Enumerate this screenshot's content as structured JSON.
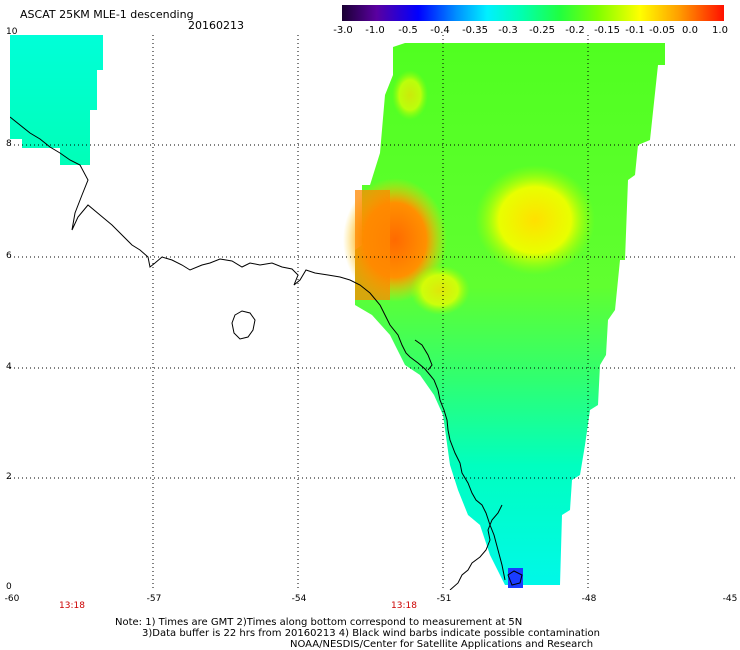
{
  "header": {
    "title": "ASCAT 25KM MLE-1 descending",
    "date": "20160213"
  },
  "colorbar": {
    "labels": [
      "-3.0",
      "-1.0",
      "-0.5",
      "-0.4",
      "-0.35",
      "-0.3",
      "-0.25",
      "-0.2",
      "-0.15",
      "-0.1",
      "-0.05",
      "0.0",
      "1.0"
    ],
    "colors": [
      "#1a0033",
      "#5a00a0",
      "#0000ff",
      "#0078ff",
      "#00d8ff",
      "#00ffd0",
      "#00ff80",
      "#40ff00",
      "#a0ff00",
      "#ffff00",
      "#ffb000",
      "#ff6000",
      "#ff0000"
    ]
  },
  "axes": {
    "lat_labels": [
      "10",
      "8",
      "6",
      "4",
      "2",
      "0"
    ],
    "lon_labels": [
      "-60",
      "-57",
      "-54",
      "-51",
      "-48",
      "-45"
    ]
  },
  "times": [
    "13:18",
    "13:18"
  ],
  "notes": {
    "line1": "Note: 1) Times are GMT 2)Times along bottom correspond to measurement at 5N",
    "line2": "3)Data buffer is 22 hrs from 20160213 4) Black wind barbs indicate possible contamination",
    "line3": "NOAA/NESDIS/Center for Satellite Applications and Research"
  }
}
